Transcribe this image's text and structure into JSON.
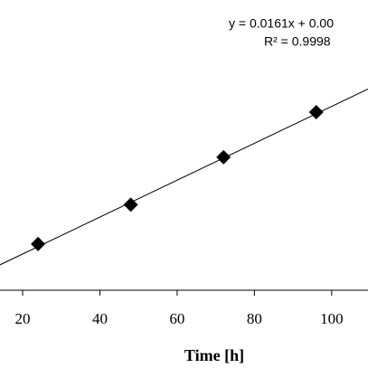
{
  "chart_data": {
    "type": "scatter",
    "x_label": "Time [h]",
    "annotations": [
      "y = 0.0161x + 0.00",
      "R² = 0.9998"
    ],
    "series": [
      {
        "color": "#000000",
        "x": [
          24,
          48,
          72,
          96
        ],
        "values": [
          0.4,
          0.74,
          1.15,
          1.54
        ]
      }
    ],
    "trendline": {
      "color": "#000000",
      "x": [
        14.15,
        109.4
      ],
      "values": [
        0.22,
        1.74
      ]
    },
    "xlim": [
      14.15,
      109.4
    ],
    "xticks": [
      20,
      40,
      60,
      80,
      100
    ],
    "ylim": [
      0,
      2.51
    ]
  }
}
